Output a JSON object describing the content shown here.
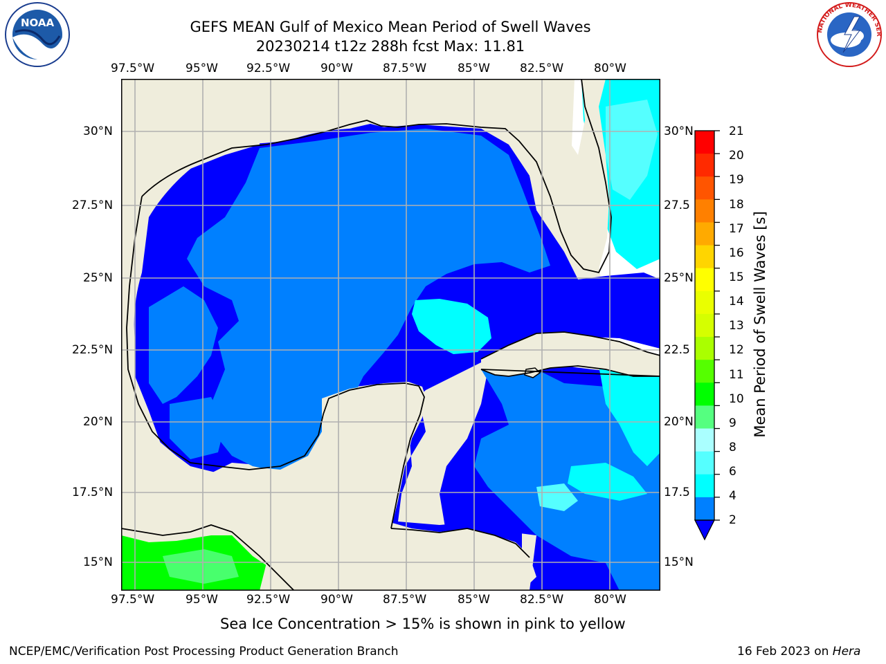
{
  "title_line1": "GEFS MEAN Gulf of Mexico Mean Period of Swell Waves",
  "title_line2": "20230214 t12z 288h fcst   Max: 11.81",
  "lon_ticks": [
    "97.5°W",
    "95°W",
    "92.5°W",
    "90°W",
    "87.5°W",
    "85°W",
    "82.5°W",
    "80°W"
  ],
  "lat_ticks_left": [
    "30°N",
    "27.5°N",
    "25°N",
    "22.5°N",
    "20°N",
    "17.5°N",
    "15°N"
  ],
  "lat_ticks_right": [
    "30°N",
    "27.5",
    "25°N",
    "22.5",
    "20°N",
    "17.5",
    "15°N"
  ],
  "colorbar": {
    "label": "Mean Period of Swell Waves [s]",
    "ticks": [
      "21",
      "20",
      "19",
      "18",
      "17",
      "16",
      "15",
      "14",
      "13",
      "12",
      "11",
      "10",
      "9",
      "8",
      "6",
      "4",
      "2"
    ],
    "colors": [
      "#ff0000",
      "#ff2a00",
      "#ff5500",
      "#ff8000",
      "#ffaa00",
      "#ffd500",
      "#ffff00",
      "#eaff00",
      "#d5ff00",
      "#aaff00",
      "#55ff00",
      "#00ff00",
      "#55ff80",
      "#aaffff",
      "#55ffff",
      "#00ffff",
      "#0080ff"
    ],
    "extend_color": "#0000ff"
  },
  "colors": {
    "land": "#efeddc",
    "ocean_low": "#0000ff",
    "ocean_mid": "#0080ff",
    "ocean_high": "#00ffff",
    "ocean_teal": "#55ffff",
    "pacific_green": "#00ff00",
    "pacific_light": "#55ff80"
  },
  "logos": {
    "noaa": "NOAA",
    "nws": "NATIONAL WEATHER SERVICE"
  },
  "sea_ice_note": "Sea Ice Concentration > 15% is shown in pink to yellow",
  "footer_left": "NCEP/EMC/Verification Post Processing Product Generation Branch",
  "footer_date": "16 Feb 2023 on ",
  "footer_host": "Hera"
}
